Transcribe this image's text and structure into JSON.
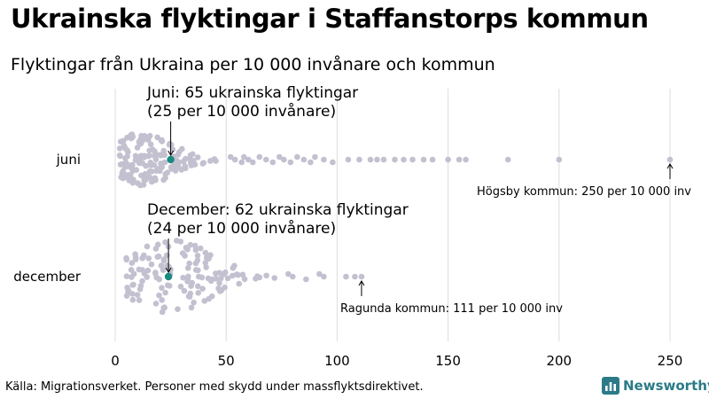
{
  "title": "Ukrainska flyktingar i Staffanstorps kommun",
  "subtitle": "Flyktingar från Ukraina per 10 000 invånare och kommun",
  "source": "Källa: Migrationsverket. Personer med skydd under massflyktsdirektivet.",
  "brand": "Newsworthy",
  "colors": {
    "dot": "#c3c0d0",
    "highlight": "#1a8a80",
    "grid": "#dcdcdc",
    "brand": "#2a7b87"
  },
  "chart_data": {
    "type": "scatter",
    "variant": "beeswarm",
    "xlim": [
      0,
      250
    ],
    "x_ticks": [
      0,
      50,
      100,
      150,
      200,
      250
    ],
    "grid": "vertical",
    "rows": [
      {
        "label": "juni",
        "highlight": {
          "value": 25,
          "annotation_lines": [
            "Juni: 65 ukrainska flyktingar",
            "(25 per 10 000 invånare)"
          ]
        },
        "max": {
          "value": 250,
          "annotation": "Högsby kommun: 250 per 10 000 inv"
        },
        "tail_values": [
          52,
          54,
          57,
          58,
          60,
          62,
          65,
          68,
          71,
          74,
          76,
          79,
          82,
          85,
          88,
          90,
          94,
          98,
          105,
          110,
          115,
          118,
          121,
          126,
          130,
          134,
          139,
          143,
          150,
          155,
          158,
          177,
          200,
          250
        ]
      },
      {
        "label": "december",
        "highlight": {
          "value": 24,
          "annotation_lines": [
            "December: 62 ukrainska flyktingar",
            "(24 per 10 000 invånare)"
          ]
        },
        "max": {
          "value": 111,
          "annotation": "Ragunda kommun: 111 per 10 000 inv"
        },
        "tail_values": [
          78,
          80,
          86,
          92,
          94,
          104,
          108,
          111
        ]
      }
    ]
  }
}
